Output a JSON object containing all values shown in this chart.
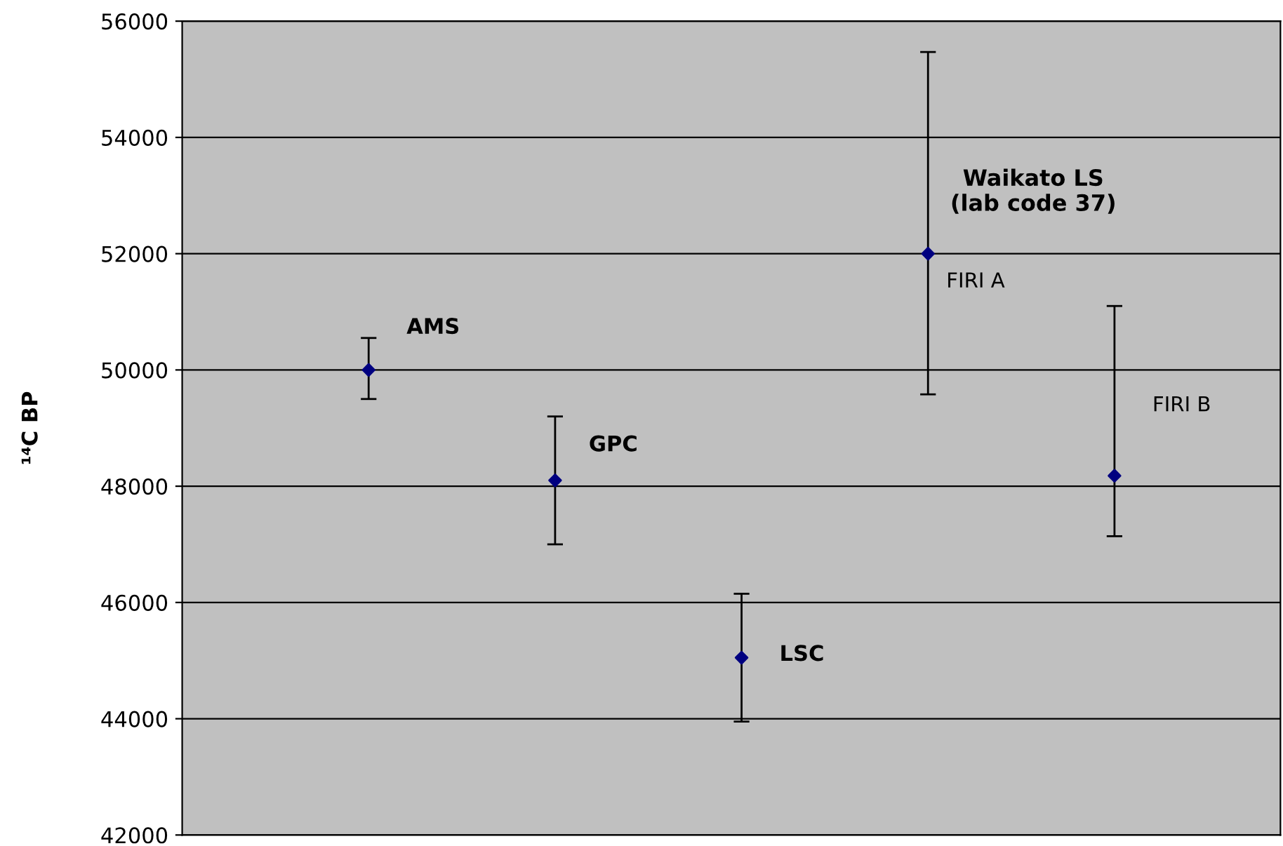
{
  "chart_data": {
    "type": "scatter",
    "ylabel": "¹⁴C BP",
    "categories": [
      null,
      null,
      null,
      null,
      null
    ],
    "series": [
      {
        "color": "#000080",
        "values": [
          50000,
          48100,
          45050,
          52000,
          48180
        ],
        "errors": [
          [
            49500,
            50550
          ],
          1100,
          1100,
          [
            49580,
            55470
          ],
          [
            47140,
            51100
          ]
        ]
      }
    ],
    "ylim": [
      42000,
      56000
    ],
    "yticks": [
      42000,
      44000,
      46000,
      48000,
      50000,
      52000,
      54000,
      56000
    ],
    "grid": "y",
    "marker": "diamond",
    "legend": false,
    "annotations": [
      "AMS",
      "GPC",
      "LSC",
      "Waikato LS\n(lab code 37)",
      "FIRI A",
      "FIRI B"
    ]
  }
}
